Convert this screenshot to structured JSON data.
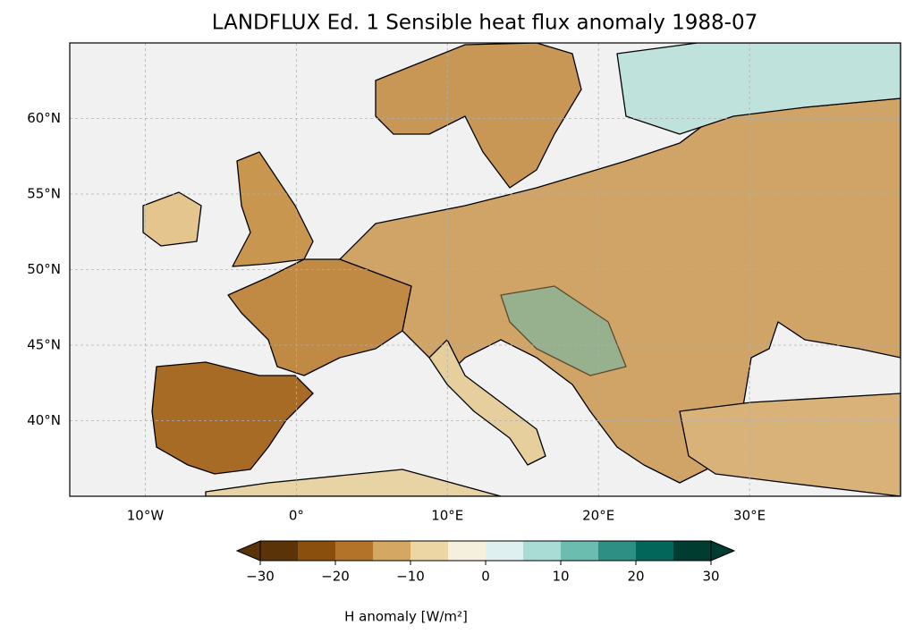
{
  "chart_data": {
    "type": "map",
    "title": "LANDFLUX Ed. 1 Sensible heat flux anomaly 1988-07",
    "xlim": [
      -15,
      40
    ],
    "ylim": [
      35,
      65
    ],
    "xticks": [
      {
        "value": -10,
        "label": "10°W"
      },
      {
        "value": 0,
        "label": "0°"
      },
      {
        "value": 10,
        "label": "10°E"
      },
      {
        "value": 20,
        "label": "20°E"
      },
      {
        "value": 30,
        "label": "30°E"
      }
    ],
    "yticks": [
      {
        "value": 40,
        "label": "40°N"
      },
      {
        "value": 45,
        "label": "45°N"
      },
      {
        "value": 50,
        "label": "50°N"
      },
      {
        "value": 55,
        "label": "55°N"
      },
      {
        "value": 60,
        "label": "60°N"
      }
    ],
    "grid": true,
    "colorbar": {
      "label": "H anomaly [W/m²]",
      "levels": [
        -30,
        -25,
        -20,
        -15,
        -10,
        -5,
        0,
        5,
        10,
        15,
        20,
        25,
        30
      ],
      "colors": [
        "#5a3408",
        "#8a4f0d",
        "#b37429",
        "#d4a862",
        "#ecd7a4",
        "#f5efdd",
        "#def0ef",
        "#a9dcd4",
        "#6bbdb0",
        "#2e8f85",
        "#02665a",
        "#003c30"
      ],
      "ticks": [
        {
          "value": -30,
          "label": "−30"
        },
        {
          "value": -20,
          "label": "−20"
        },
        {
          "value": -10,
          "label": "−10"
        },
        0,
        10,
        20,
        30
      ]
    }
  }
}
